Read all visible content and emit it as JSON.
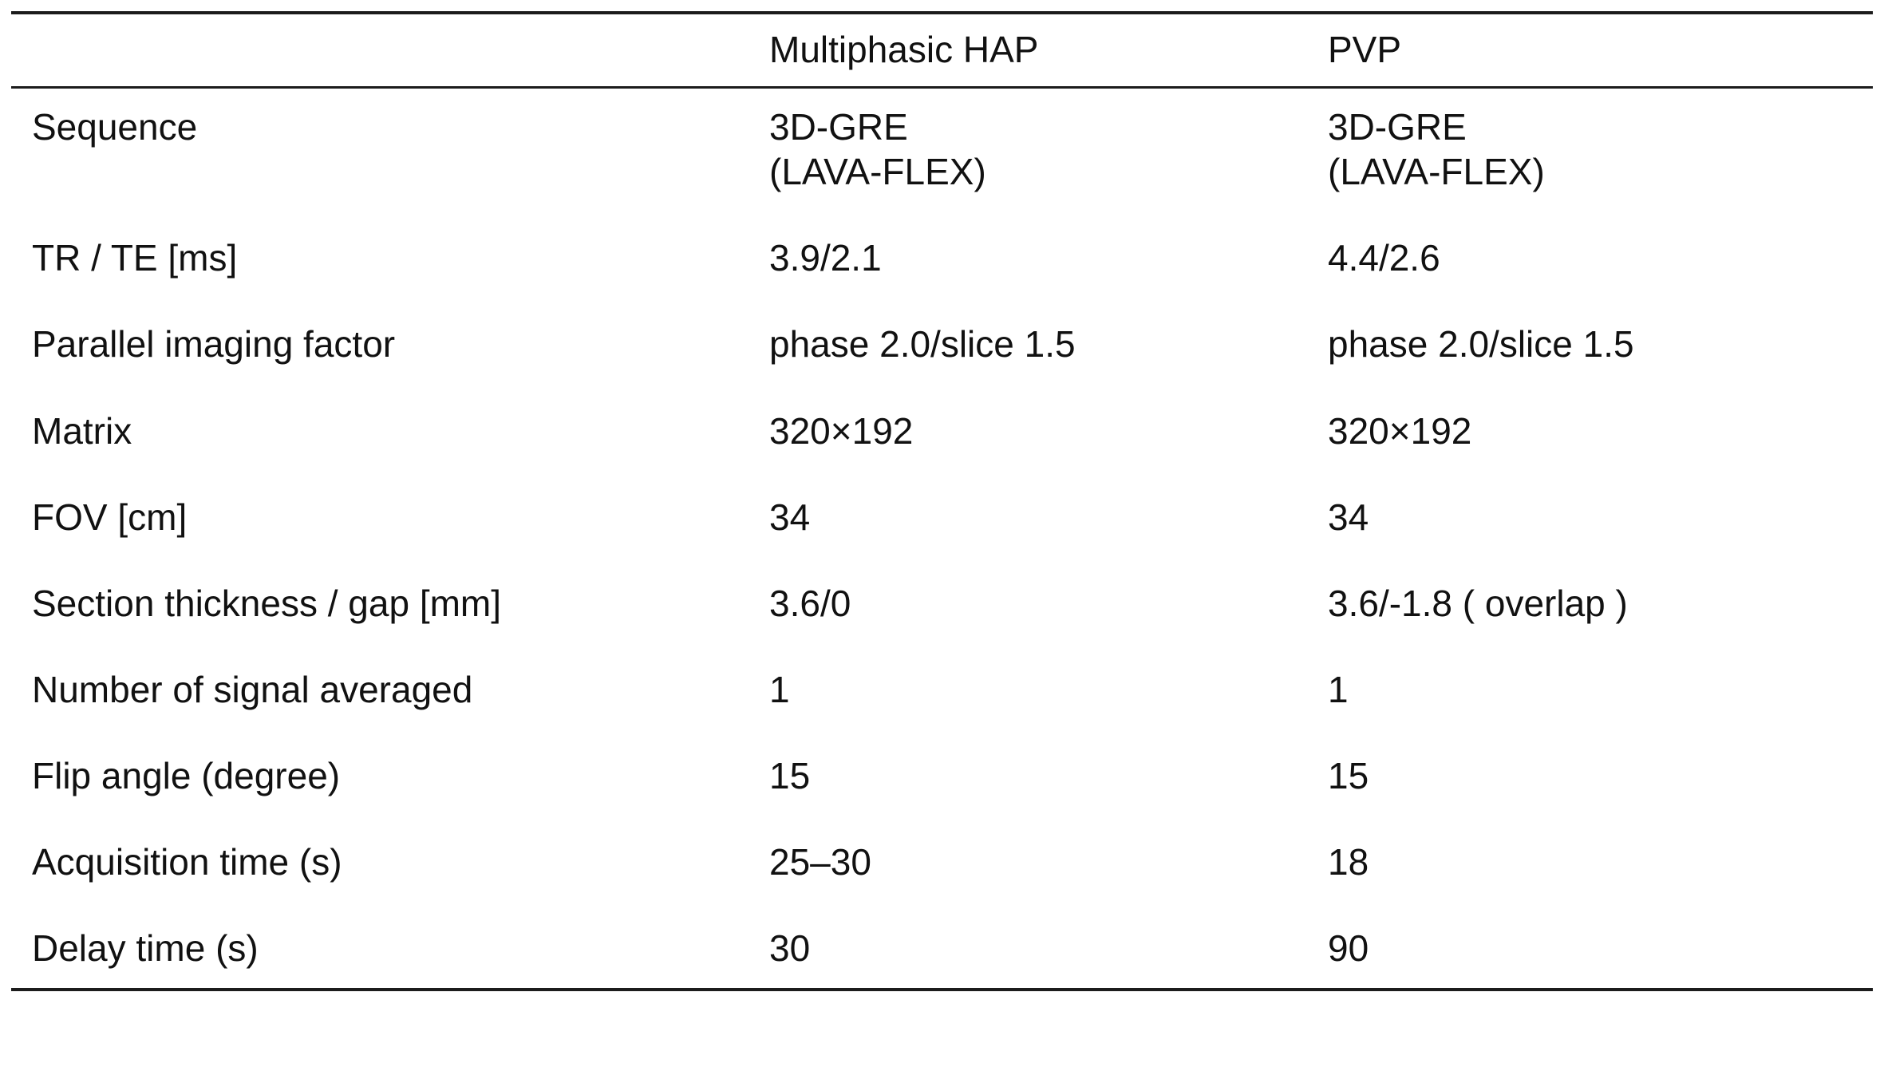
{
  "table": {
    "columns": {
      "param": "",
      "hap": "Multiphasic HAP",
      "pvp": "PVP"
    },
    "rows": [
      {
        "param": "Sequence",
        "hap": "3D-GRE\n(LAVA-FLEX)",
        "pvp": "3D-GRE\n(LAVA-FLEX)"
      },
      {
        "param": "TR / TE [ms]",
        "hap": "3.9/2.1",
        "pvp": "4.4/2.6"
      },
      {
        "param": "Parallel imaging factor",
        "hap": "phase 2.0/slice 1.5",
        "pvp": "phase 2.0/slice 1.5"
      },
      {
        "param": "Matrix",
        "hap": "320×192",
        "pvp": "320×192"
      },
      {
        "param": "FOV [cm]",
        "hap": "34",
        "pvp": "34"
      },
      {
        "param": "Section thickness / gap [mm]",
        "hap": "3.6/0",
        "pvp": "3.6/-1.8 ( overlap )"
      },
      {
        "param": "Number of signal averaged",
        "hap": "1",
        "pvp": "1"
      },
      {
        "param": "Flip angle (degree)",
        "hap": "15",
        "pvp": "15"
      },
      {
        "param": "Acquisition time (s)",
        "hap": "25–30",
        "pvp": "18"
      },
      {
        "param": "Delay time (s)",
        "hap": "30",
        "pvp": "90"
      }
    ]
  }
}
